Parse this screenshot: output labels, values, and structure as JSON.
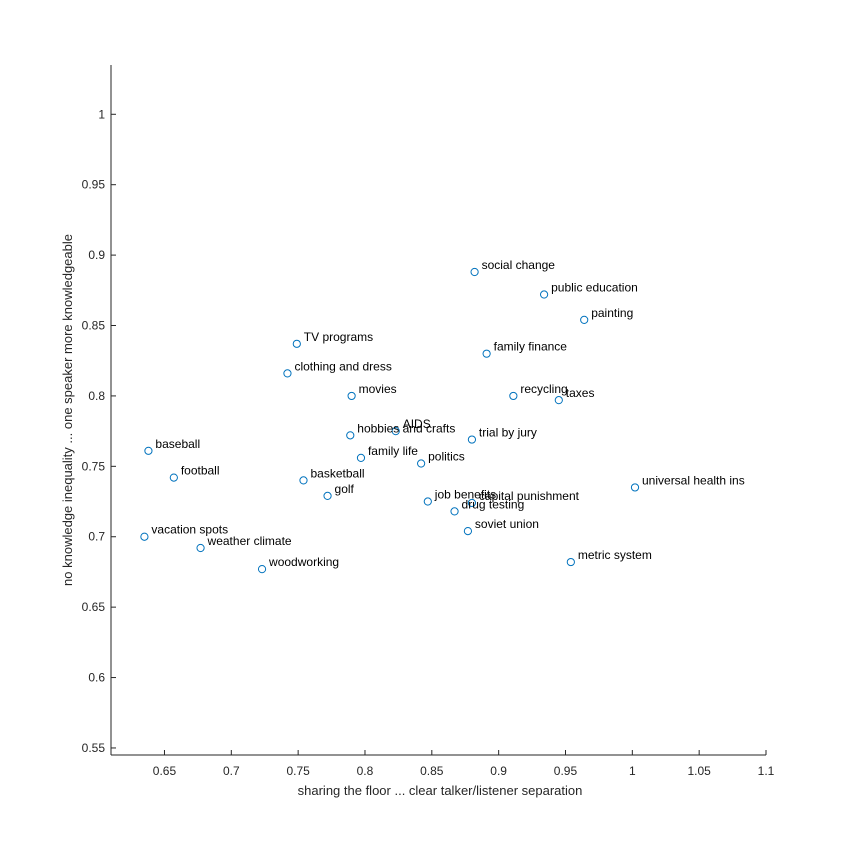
{
  "chart_data": {
    "type": "scatter",
    "title": "",
    "xlabel": "sharing the floor ... clear talker/listener separation",
    "ylabel": "no knowledge inequality ... one speaker more knowledgeable",
    "xlim": [
      0.61,
      1.1
    ],
    "ylim": [
      0.545,
      1.035
    ],
    "xticks": [
      0.65,
      0.7,
      0.75,
      0.8,
      0.85,
      0.9,
      0.95,
      1,
      1.05,
      1.1
    ],
    "xtick_labels": [
      "0.65",
      "0.7",
      "0.75",
      "0.8",
      "0.85",
      "0.9",
      "0.95",
      "1",
      "1.05",
      "1.1"
    ],
    "yticks": [
      0.55,
      0.6,
      0.65,
      0.7,
      0.75,
      0.8,
      0.85,
      0.9,
      0.95,
      1
    ],
    "ytick_labels": [
      "0.55",
      "0.6",
      "0.65",
      "0.7",
      "0.75",
      "0.8",
      "0.85",
      "0.9",
      "0.95",
      "1"
    ],
    "grid": false,
    "marker_color": "#0072BD",
    "points": [
      {
        "label": "social change",
        "x": 0.882,
        "y": 0.888
      },
      {
        "label": "public education",
        "x": 0.934,
        "y": 0.872
      },
      {
        "label": "painting",
        "x": 0.964,
        "y": 0.854
      },
      {
        "label": "TV programs",
        "x": 0.749,
        "y": 0.837
      },
      {
        "label": "family finance",
        "x": 0.891,
        "y": 0.83
      },
      {
        "label": "clothing and dress",
        "x": 0.742,
        "y": 0.816
      },
      {
        "label": "movies",
        "x": 0.79,
        "y": 0.8
      },
      {
        "label": "recycling",
        "x": 0.911,
        "y": 0.8
      },
      {
        "label": "taxes",
        "x": 0.945,
        "y": 0.797
      },
      {
        "label": "AIDS",
        "x": 0.823,
        "y": 0.775
      },
      {
        "label": "hobbies and crafts",
        "x": 0.789,
        "y": 0.772
      },
      {
        "label": "trial by jury",
        "x": 0.88,
        "y": 0.769
      },
      {
        "label": "baseball",
        "x": 0.638,
        "y": 0.761
      },
      {
        "label": "family life",
        "x": 0.797,
        "y": 0.756
      },
      {
        "label": "politics",
        "x": 0.842,
        "y": 0.752
      },
      {
        "label": "football",
        "x": 0.657,
        "y": 0.742
      },
      {
        "label": "basketball",
        "x": 0.754,
        "y": 0.74
      },
      {
        "label": "universal health ins",
        "x": 1.002,
        "y": 0.735
      },
      {
        "label": "golf",
        "x": 0.772,
        "y": 0.729
      },
      {
        "label": "job benefits",
        "x": 0.847,
        "y": 0.725
      },
      {
        "label": "capital punishment",
        "x": 0.88,
        "y": 0.724
      },
      {
        "label": "drug testing",
        "x": 0.867,
        "y": 0.718
      },
      {
        "label": "soviet union",
        "x": 0.877,
        "y": 0.704
      },
      {
        "label": "vacation spots",
        "x": 0.635,
        "y": 0.7
      },
      {
        "label": "weather climate",
        "x": 0.677,
        "y": 0.692
      },
      {
        "label": "metric system",
        "x": 0.954,
        "y": 0.682
      },
      {
        "label": "woodworking",
        "x": 0.723,
        "y": 0.677
      }
    ]
  }
}
